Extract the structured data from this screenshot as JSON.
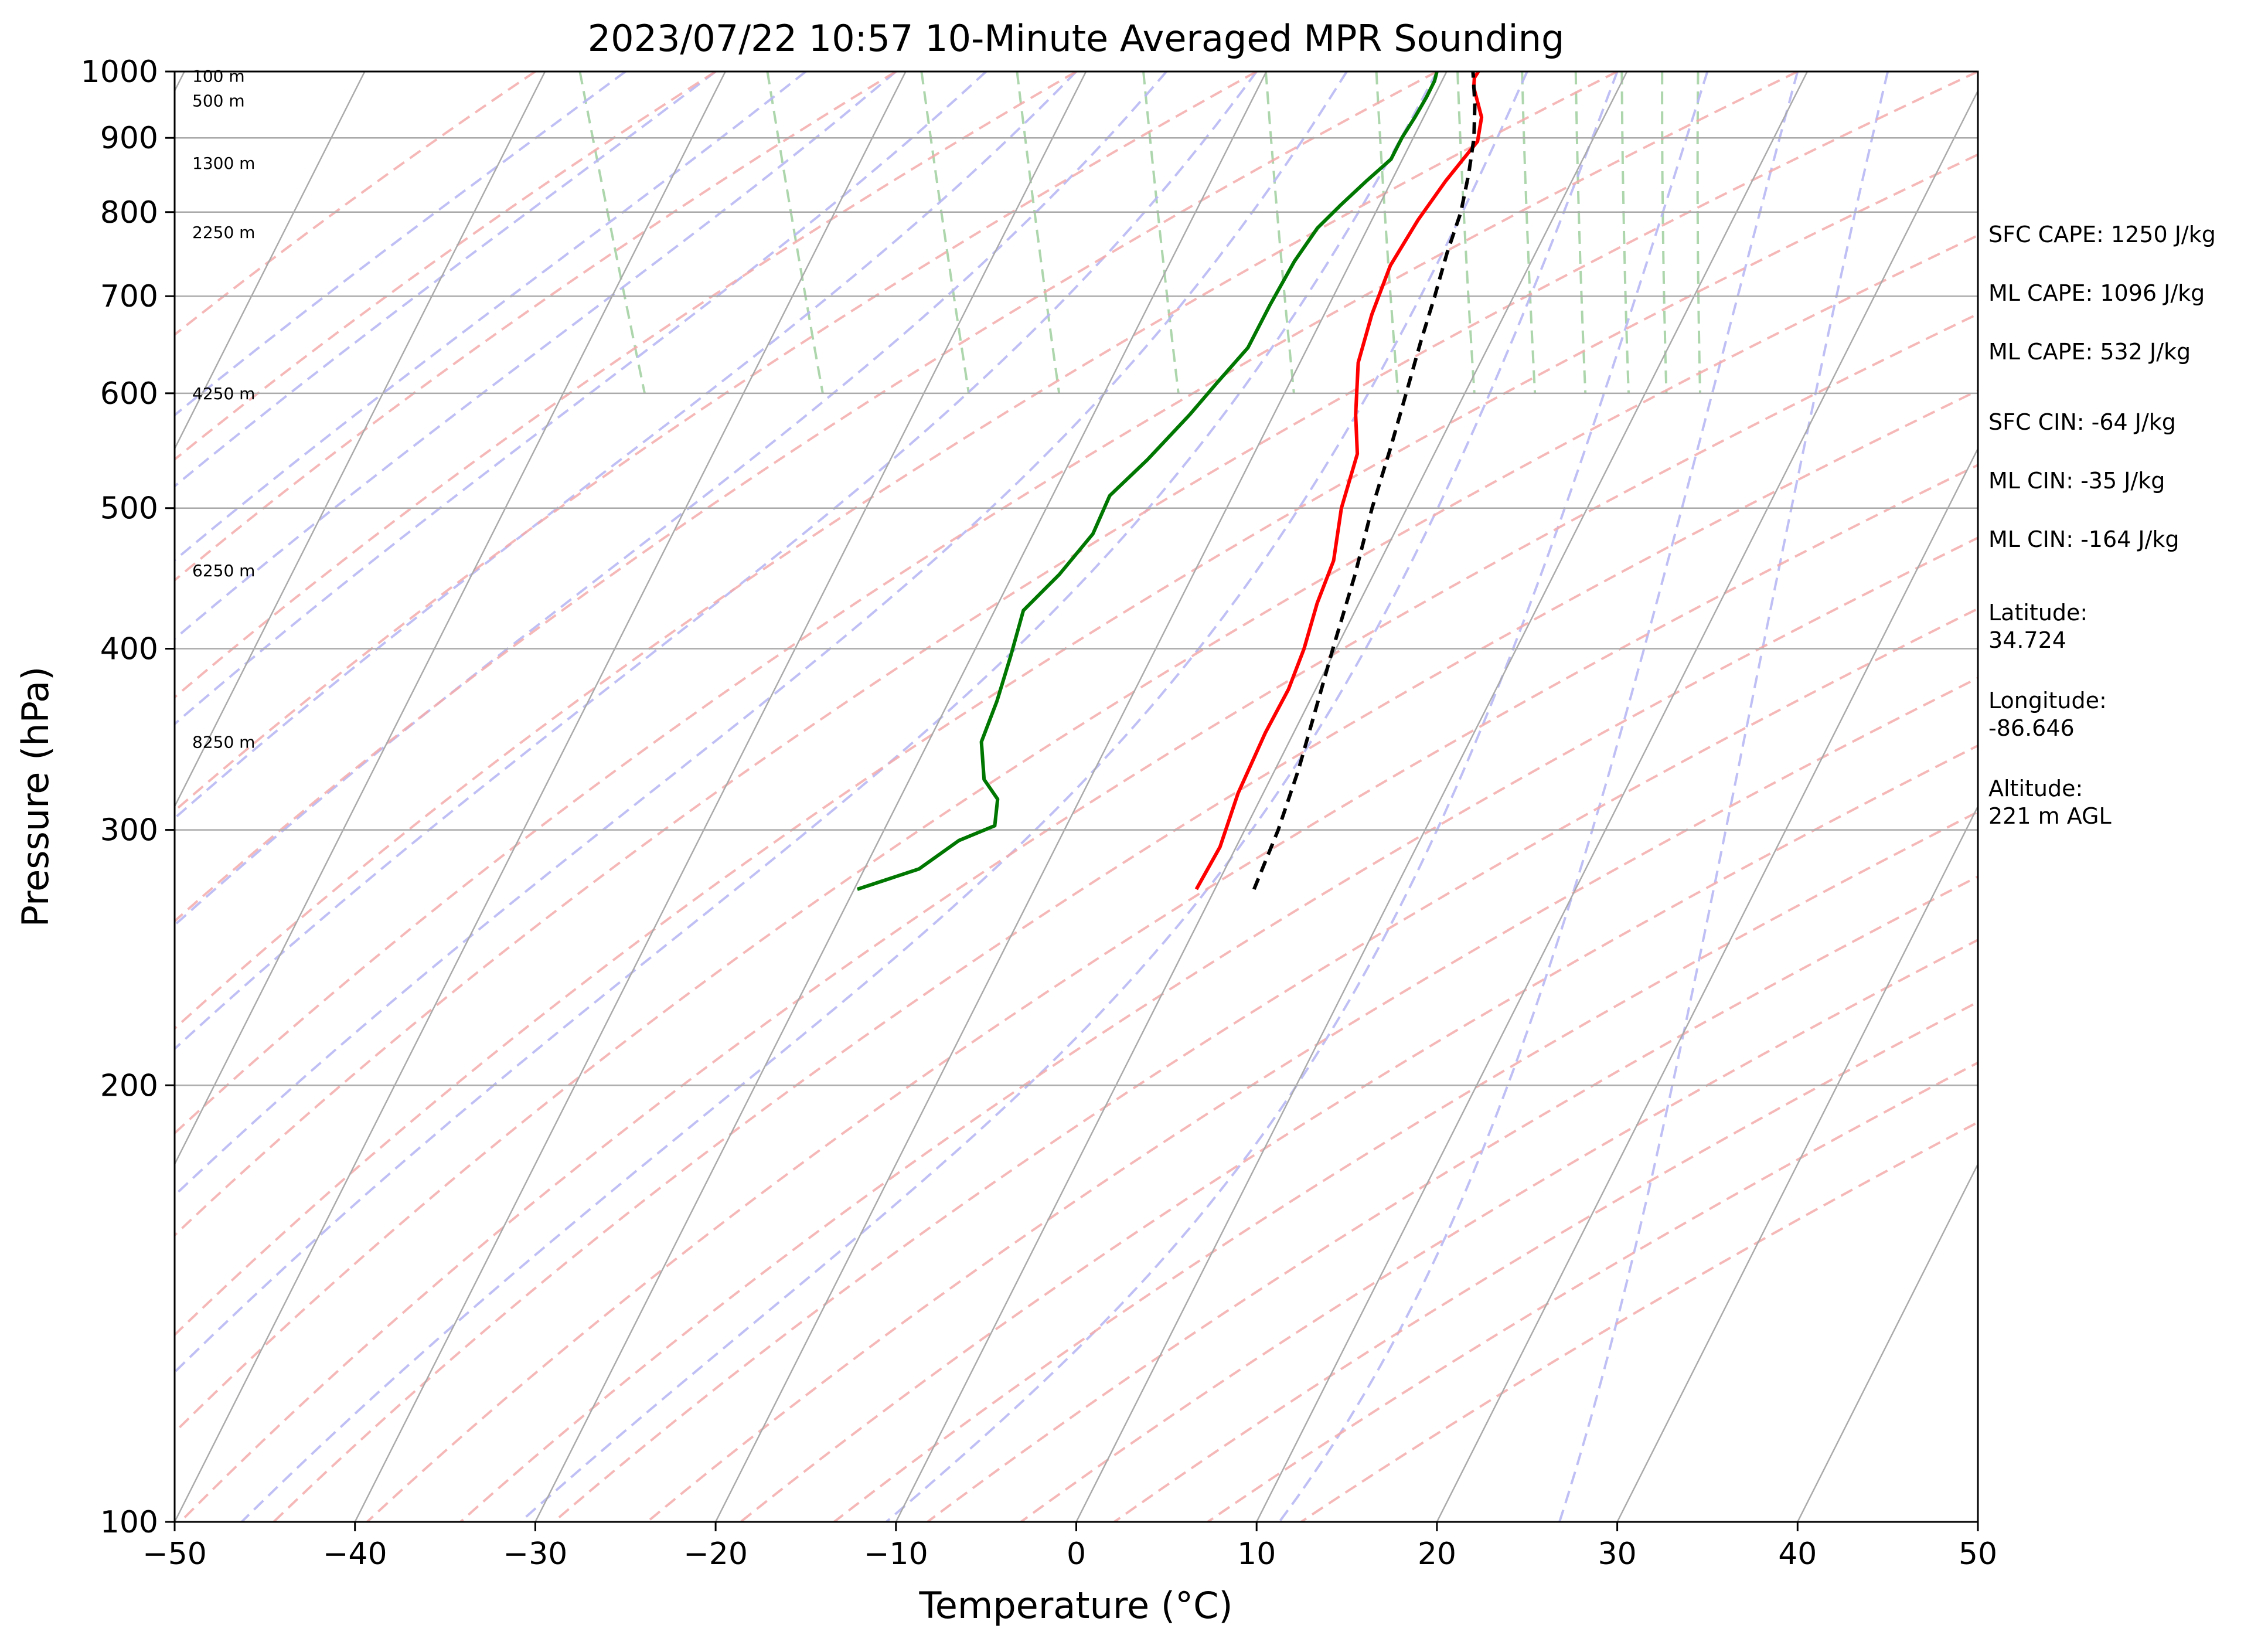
{
  "chart_data": {
    "type": "line",
    "title": "2023/07/22 10:57 10-Minute Averaged MPR Sounding",
    "xlabel": "Temperature (°C)",
    "ylabel": "Pressure (hPa)",
    "xlim": [
      -50,
      50
    ],
    "ylim": [
      1000,
      100
    ],
    "y_scale": "log",
    "skew": "skew-T log-P",
    "x_ticks": [
      "−50",
      "−40",
      "−30",
      "−20",
      "−10",
      "0",
      "10",
      "20",
      "30",
      "40",
      "50"
    ],
    "y_ticks": [
      "100",
      "200",
      "300",
      "400",
      "500",
      "600",
      "700",
      "800",
      "900",
      "1000"
    ],
    "altitude_labels": [
      {
        "text": "8250 m",
        "p": 345
      },
      {
        "text": "6250 m",
        "p": 453
      },
      {
        "text": "4250 m",
        "p": 600
      },
      {
        "text": "2250 m",
        "p": 775
      },
      {
        "text": "1300 m",
        "p": 865
      },
      {
        "text": "500 m",
        "p": 955
      },
      {
        "text": "100 m",
        "p": 993
      }
    ],
    "series": [
      {
        "name": "",
        "color": "#ff0000",
        "points": [
          [
            273,
            -16.2
          ],
          [
            292,
            -13.7
          ],
          [
            318,
            -11.2
          ],
          [
            350,
            -8.0
          ],
          [
            375,
            -5.5
          ],
          [
            400,
            -3.5
          ],
          [
            430,
            -1.5
          ],
          [
            460,
            0.6
          ],
          [
            500,
            2.5
          ],
          [
            545,
            4.9
          ],
          [
            580,
            5.9
          ],
          [
            630,
            7.5
          ],
          [
            680,
            9.6
          ],
          [
            735,
            12.0
          ],
          [
            790,
            14.8
          ],
          [
            840,
            17.4
          ],
          [
            870,
            19.0
          ],
          [
            895,
            20.3
          ],
          [
            930,
            21.2
          ],
          [
            975,
            21.6
          ],
          [
            990,
            21.9
          ],
          [
            1000,
            22.3
          ]
        ]
      },
      {
        "name": "",
        "color": "#007700",
        "points": [
          [
            273,
            -35.0
          ],
          [
            282,
            -31.0
          ],
          [
            295,
            -28.0
          ],
          [
            302,
            -25.6
          ],
          [
            315,
            -24.7
          ],
          [
            325,
            -24.9
          ],
          [
            345,
            -24.0
          ],
          [
            368,
            -22.0
          ],
          [
            395,
            -20.0
          ],
          [
            425,
            -18.0
          ],
          [
            450,
            -15.0
          ],
          [
            480,
            -12.0
          ],
          [
            510,
            -10.0
          ],
          [
            540,
            -6.9
          ],
          [
            580,
            -3.3
          ],
          [
            610,
            -0.9
          ],
          [
            645,
            1.8
          ],
          [
            690,
            4.2
          ],
          [
            740,
            6.8
          ],
          [
            780,
            9.0
          ],
          [
            810,
            11.0
          ],
          [
            840,
            13.0
          ],
          [
            870,
            15.0
          ],
          [
            900,
            16.2
          ],
          [
            930,
            17.5
          ],
          [
            960,
            18.7
          ],
          [
            985,
            19.6
          ],
          [
            1000,
            20.0
          ]
        ]
      },
      {
        "name": "",
        "color": "#000000",
        "dashed": true,
        "points": [
          [
            273,
            -13.0
          ],
          [
            300,
            -10.0
          ],
          [
            330,
            -7.2
          ],
          [
            360,
            -4.8
          ],
          [
            400,
            -1.9
          ],
          [
            450,
            1.4
          ],
          [
            500,
            4.2
          ],
          [
            550,
            6.9
          ],
          [
            600,
            9.3
          ],
          [
            650,
            11.5
          ],
          [
            700,
            13.6
          ],
          [
            750,
            15.5
          ],
          [
            800,
            17.4
          ],
          [
            850,
            18.9
          ],
          [
            900,
            20.2
          ],
          [
            950,
            21.2
          ],
          [
            1000,
            22.0
          ]
        ]
      }
    ],
    "background_lines": {
      "grid": true,
      "isotherms": "gray",
      "dry_adiabats": "#f4aaaa dashed",
      "moist_adiabats": "#a0a0f0 dashed",
      "mixing_ratio": "#99cc99 dashed"
    }
  },
  "side_panel": {
    "sfc_cape": "SFC CAPE: 1250 J/kg",
    "ml_cape_1": "ML CAPE: 1096 J/kg",
    "ml_cape_2": "ML CAPE: 532 J/kg",
    "sfc_cin": "SFC CIN: -64 J/kg",
    "ml_cin_1": "ML CIN: -35 J/kg",
    "ml_cin_2": "ML CIN: -164 J/kg",
    "latitude_label": "Latitude:",
    "latitude_value": "34.724",
    "longitude_label": "Longitude:",
    "longitude_value": "-86.646",
    "altitude_label": "Altitude:",
    "altitude_value": "221 m AGL"
  }
}
